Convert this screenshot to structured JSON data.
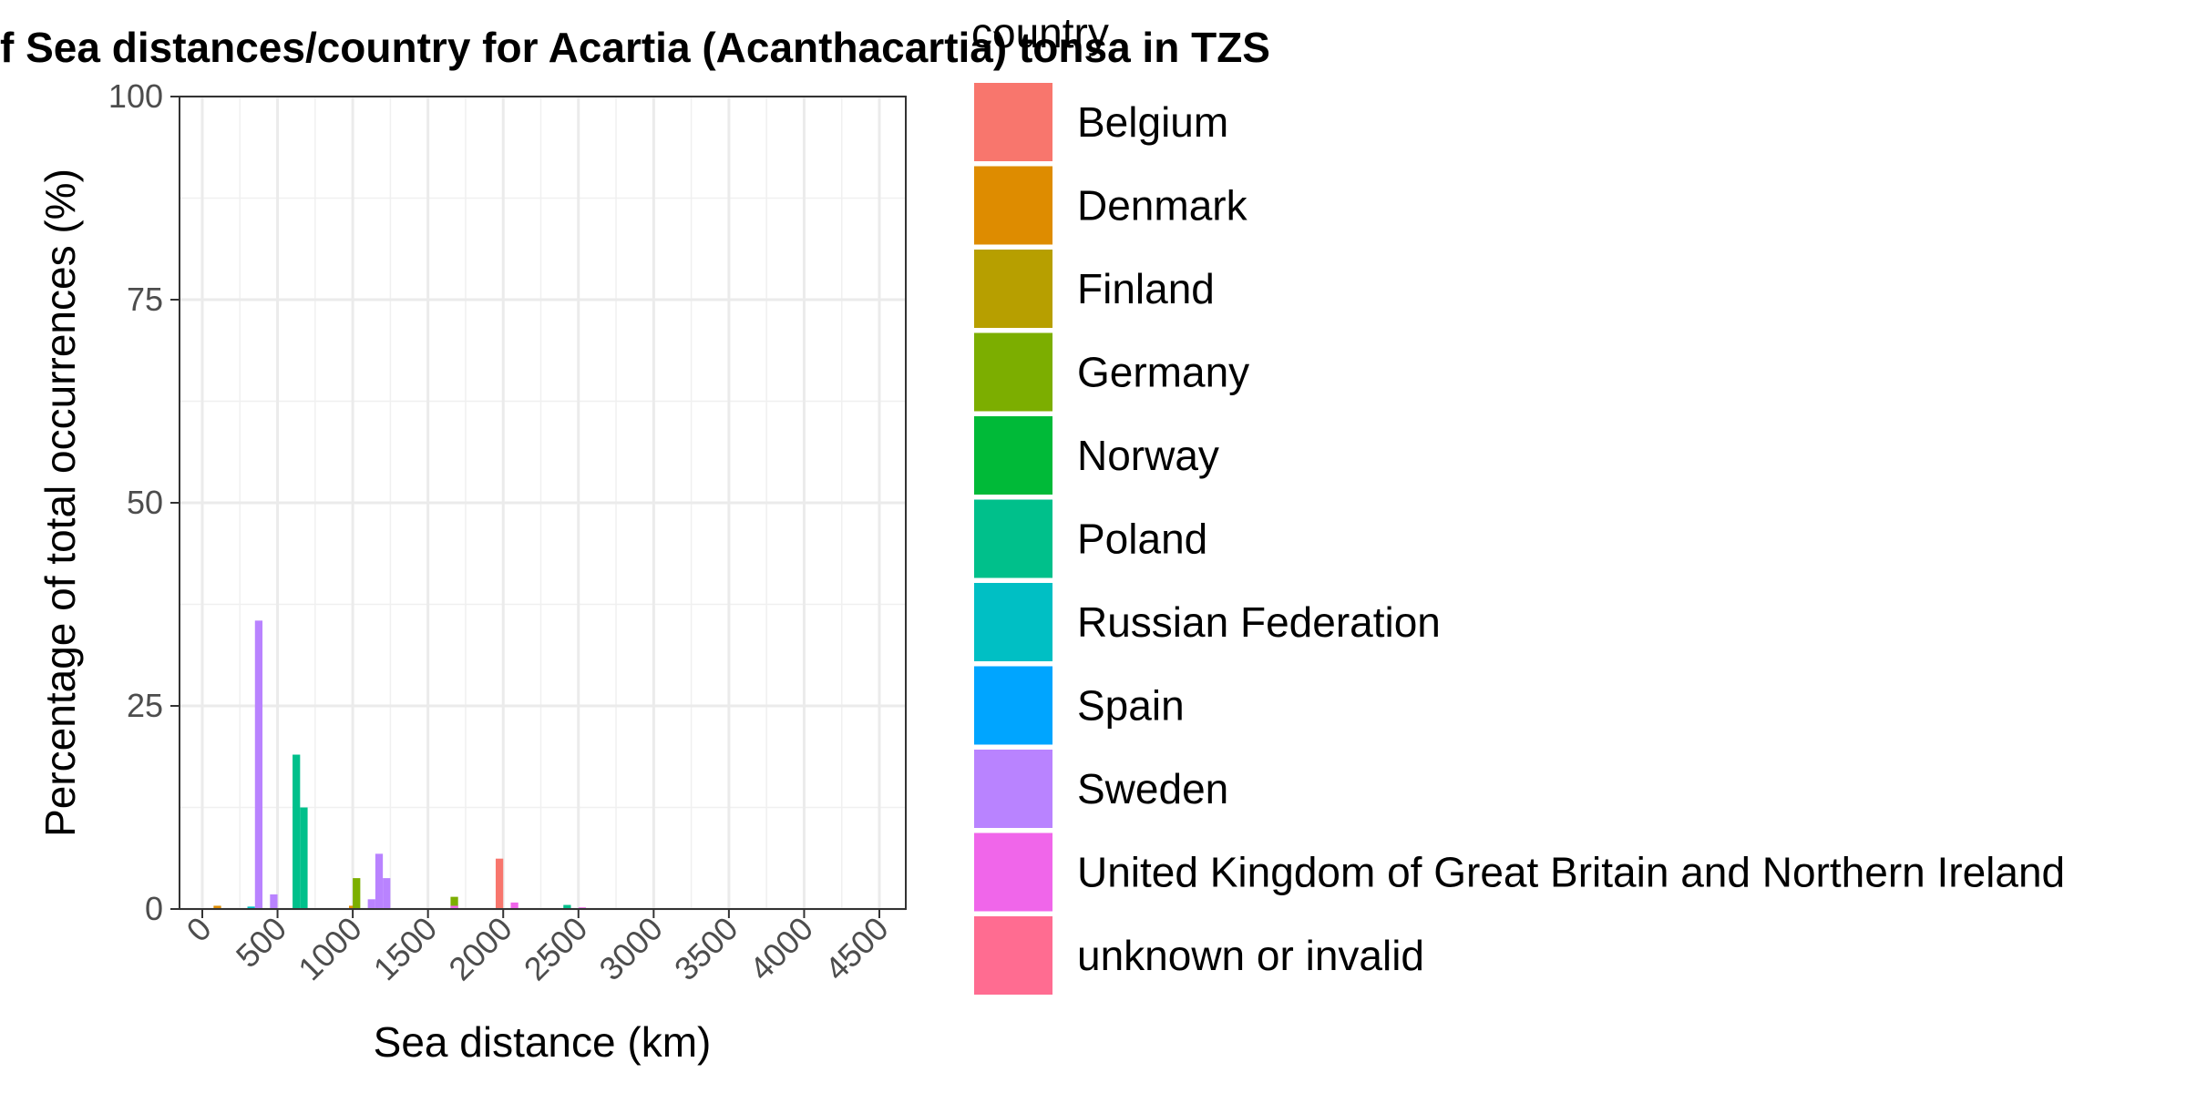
{
  "chart_data": {
    "type": "bar",
    "title": "f Sea distances/country for Acartia (Acanthacartia) tonsa in TZS",
    "xlabel": "Sea distance (km)",
    "ylabel": "Percentage of total occurrences (%)",
    "xlim": [
      0,
      4650
    ],
    "ylim": [
      0,
      100
    ],
    "x_ticks": [
      "0",
      "500",
      "1000",
      "1500",
      "2000",
      "2500",
      "3000",
      "3500",
      "4000",
      "4500"
    ],
    "y_ticks": [
      "0",
      "25",
      "50",
      "75",
      "100"
    ],
    "grid": true,
    "legend": {
      "title": "country",
      "position": "right",
      "entries": [
        {
          "label": "Belgium",
          "color": "#F8766D"
        },
        {
          "label": "Denmark",
          "color": "#DE8C00"
        },
        {
          "label": "Finland",
          "color": "#B79F00"
        },
        {
          "label": "Germany",
          "color": "#7CAE00"
        },
        {
          "label": "Norway",
          "color": "#00BA38"
        },
        {
          "label": "Poland",
          "color": "#00C08B"
        },
        {
          "label": "Russian Federation",
          "color": "#00BFC4"
        },
        {
          "label": "Spain",
          "color": "#00A5FF"
        },
        {
          "label": "Sweden",
          "color": "#B983FF"
        },
        {
          "label": "United Kingdom of Great Britain and Northern Ireland",
          "color": "#F066EA"
        },
        {
          "label": "unknown or invalid",
          "color": "#FF6C91"
        }
      ]
    },
    "bar_width": 50,
    "series": [
      {
        "name": "Denmark",
        "points": [
          {
            "x": 100,
            "y": 0.4
          },
          {
            "x": 1000,
            "y": 0.4
          }
        ]
      },
      {
        "name": "Belgium",
        "points": [
          {
            "x": 1975,
            "y": 6.2
          }
        ]
      },
      {
        "name": "Germany",
        "points": [
          {
            "x": 1025,
            "y": 3.8
          },
          {
            "x": 1675,
            "y": 1.5
          }
        ]
      },
      {
        "name": "Poland",
        "points": [
          {
            "x": 625,
            "y": 19.0
          },
          {
            "x": 675,
            "y": 12.5
          },
          {
            "x": 2425,
            "y": 0.5
          }
        ]
      },
      {
        "name": "Russian Federation",
        "points": [
          {
            "x": 325,
            "y": 0.3
          }
        ]
      },
      {
        "name": "Sweden",
        "points": [
          {
            "x": 375,
            "y": 35.5
          },
          {
            "x": 475,
            "y": 1.8
          },
          {
            "x": 1125,
            "y": 1.2
          },
          {
            "x": 1175,
            "y": 6.8
          },
          {
            "x": 1225,
            "y": 3.8
          }
        ]
      },
      {
        "name": "United Kingdom of Great Britain and Northern Ireland",
        "points": [
          {
            "x": 1675,
            "y": 0.4
          },
          {
            "x": 2075,
            "y": 0.8
          },
          {
            "x": 2525,
            "y": 0.2
          }
        ]
      }
    ]
  }
}
